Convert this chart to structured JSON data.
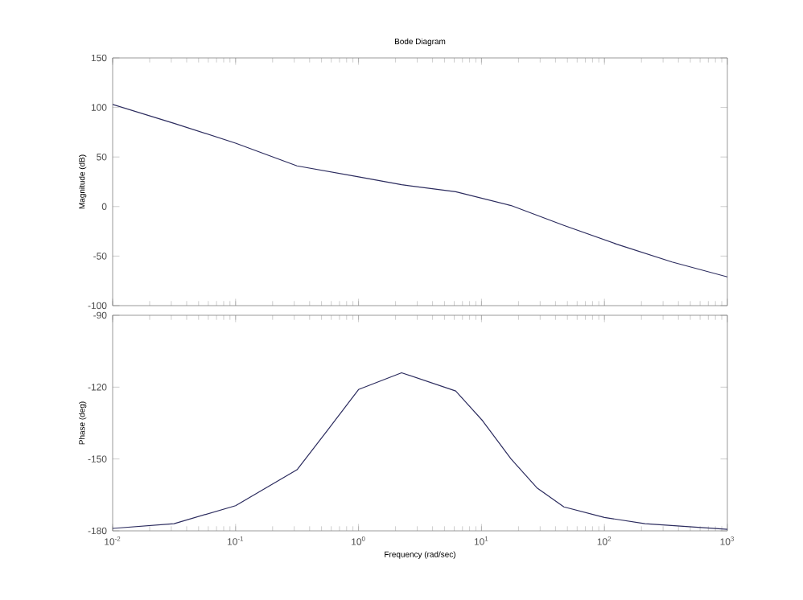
{
  "chart_data": [
    {
      "type": "line",
      "title": "Bode Diagram",
      "ylabel": "Magnitude (dB)",
      "log": "x",
      "tick_labels": "y",
      "xlim": [
        0.01,
        1000
      ],
      "xticks": [
        {
          "value": 0.01,
          "label": null
        },
        {
          "value": 0.1,
          "label": null
        },
        {
          "value": 1,
          "label": null
        },
        {
          "value": 10,
          "label": null
        },
        {
          "value": 100,
          "label": null
        },
        {
          "value": 1000,
          "label": null
        }
      ],
      "ylim": [
        -100,
        150
      ],
      "yticks": [
        -100,
        -50,
        0,
        50,
        100,
        150
      ],
      "series": [
        {
          "color": "#2b2b5e",
          "x": [
            0.01,
            0.0316,
            0.1,
            0.316,
            1,
            2.24,
            6.17,
            17.4,
            46.8,
            126,
            355,
            1000
          ],
          "values": [
            103,
            84,
            64,
            41,
            30,
            22,
            15,
            1,
            -19,
            -38,
            -56,
            -71
          ]
        }
      ]
    },
    {
      "type": "line",
      "xlabel": "Frequency (rad/sec)",
      "ylabel": "Phase (deg)",
      "log": "x",
      "xlim": [
        0.01,
        1000
      ],
      "xticks": [
        {
          "value": 0.01,
          "label": "10$^{-2}$"
        },
        {
          "value": 0.1,
          "label": "10$^{-1}$"
        },
        {
          "value": 1,
          "label": "10$^{0}$"
        },
        {
          "value": 10,
          "label": "10$^{1}$"
        },
        {
          "value": 100,
          "label": "10$^{2}$"
        },
        {
          "value": 1000,
          "label": "10$^{3}$"
        }
      ],
      "ylim": [
        -180,
        -90
      ],
      "yticks": [
        -180,
        -150,
        -120,
        -90
      ],
      "series": [
        {
          "color": "#2b2b5e",
          "x": [
            0.01,
            0.0316,
            0.1,
            0.316,
            0.56,
            1,
            2.24,
            6.17,
            10.2,
            17.4,
            28.2,
            46.8,
            100,
            214,
            1000
          ],
          "values": [
            -179,
            -177,
            -169.5,
            -154.5,
            -138,
            -121,
            -114,
            -121.6,
            -134,
            -150,
            -162,
            -170,
            -174.4,
            -177,
            -179.4
          ]
        }
      ]
    }
  ]
}
